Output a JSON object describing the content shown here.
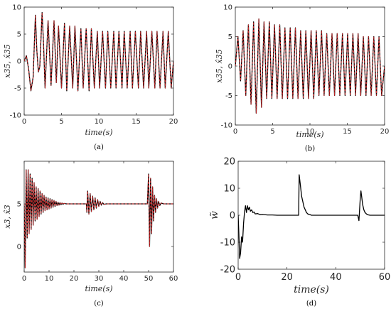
{
  "chart_data": [
    {
      "type": "line",
      "panel_label": "(a)",
      "xlabel": "time(s)",
      "ylabel": "x35, x̂35",
      "xlim": [
        0,
        20
      ],
      "ylim": [
        -10,
        10
      ],
      "xticks": [
        0,
        5,
        10,
        15,
        20
      ],
      "yticks": [
        -10,
        -5,
        0,
        5,
        10
      ],
      "grid": false,
      "series": [
        {
          "role": "actual",
          "color": "#000000",
          "dashed": false,
          "x": [
            0,
            0.3,
            0.6,
            0.9,
            1.2,
            1.5,
            1.7,
            1.9,
            2.1,
            2.4,
            2.6,
            2.8,
            3.2,
            3.6,
            4.0,
            4.3,
            4.6,
            5.0,
            5.4,
            5.7,
            6.1,
            6.5,
            6.8,
            7.2,
            7.6,
            7.9,
            8.3,
            8.7,
            9.0,
            9.4,
            9.8,
            10.1,
            10.5,
            10.9,
            11.2,
            11.6,
            12.0,
            12.3,
            12.7,
            13.1,
            13.4,
            13.8,
            14.2,
            14.5,
            14.9,
            15.3,
            15.6,
            16.0,
            16.4,
            16.7,
            17.1,
            17.5,
            17.8,
            18.2,
            18.6,
            18.9,
            19.3,
            19.7,
            20.0
          ],
          "y": [
            0,
            1,
            -1.5,
            -5.5,
            -3,
            8.5,
            2,
            -2,
            -1,
            9,
            3,
            -5,
            7.5,
            -4.5,
            7.5,
            -4,
            6.5,
            -5,
            7,
            -5.5,
            6.5,
            -5,
            6.5,
            -5.5,
            6,
            -5,
            6,
            -5.5,
            6,
            -5,
            5.5,
            -5,
            5.5,
            -5,
            5.5,
            -5,
            5.5,
            -5,
            5.5,
            -5,
            5.5,
            -5,
            5.5,
            -5,
            5.5,
            -5,
            5.5,
            -5,
            5.5,
            -5,
            5.5,
            -5,
            5.5,
            -5,
            5.5,
            -5,
            5.5,
            -5,
            0
          ]
        },
        {
          "role": "estimate",
          "color": "#d62728",
          "dashed": true,
          "x": [
            0,
            0.3,
            0.6,
            0.9,
            1.2,
            1.5,
            1.7,
            1.9,
            2.1,
            2.4,
            2.6,
            2.8,
            3.2,
            3.6,
            4.0,
            4.3,
            4.6,
            5.0,
            5.4,
            5.7,
            6.1,
            6.5,
            6.8,
            7.2,
            7.6,
            7.9,
            8.3,
            8.7,
            9.0,
            9.4,
            9.8,
            10.1,
            10.5,
            10.9,
            11.2,
            11.6,
            12.0,
            12.3,
            12.7,
            13.1,
            13.4,
            13.8,
            14.2,
            14.5,
            14.9,
            15.3,
            15.6,
            16.0,
            16.4,
            16.7,
            17.1,
            17.5,
            17.8,
            18.2,
            18.6,
            18.9,
            19.3,
            19.7,
            20.0
          ],
          "y": [
            0,
            1,
            -1.5,
            -5.5,
            -3,
            8.5,
            2,
            -2,
            -1,
            9,
            3,
            -5,
            7.5,
            -4.5,
            7.5,
            -4,
            6.5,
            -5,
            7,
            -5.5,
            6.5,
            -5,
            6.5,
            -5.5,
            6,
            -5,
            6,
            -5.5,
            6,
            -5,
            5.5,
            -5,
            5.5,
            -5,
            5.5,
            -5,
            5.5,
            -5,
            5.5,
            -5,
            5.5,
            -5,
            5.5,
            -5,
            5.5,
            -5,
            5.5,
            -5,
            5.5,
            -5,
            5.5,
            -5,
            5.5,
            -5,
            5.5,
            -5,
            5.5,
            -5,
            0
          ]
        }
      ]
    },
    {
      "type": "line",
      "panel_label": "(b)",
      "xlabel": "time(s)",
      "ylabel": "x35, x̂35",
      "xlim": [
        0,
        20
      ],
      "ylim": [
        -10,
        10
      ],
      "xticks": [
        0,
        5,
        10,
        15,
        20
      ],
      "yticks": [
        -10,
        -5,
        0,
        5,
        10
      ],
      "grid": false,
      "series": [
        {
          "role": "actual",
          "color": "#000000",
          "dashed": false,
          "x": [
            0,
            0.35,
            0.7,
            1.05,
            1.4,
            1.75,
            2.1,
            2.45,
            2.8,
            3.15,
            3.5,
            3.85,
            4.2,
            4.55,
            4.9,
            5.25,
            5.6,
            5.95,
            6.3,
            6.65,
            7.0,
            7.35,
            7.7,
            8.05,
            8.4,
            8.75,
            9.1,
            9.45,
            9.8,
            10.15,
            10.5,
            10.85,
            11.2,
            11.55,
            11.9,
            12.25,
            12.6,
            12.95,
            13.3,
            13.65,
            14.0,
            14.35,
            14.7,
            15.05,
            15.4,
            15.75,
            16.1,
            16.45,
            16.8,
            17.15,
            17.5,
            17.85,
            18.2,
            18.55,
            18.9,
            19.25,
            19.6,
            20.0
          ],
          "y": [
            0,
            5,
            -2.5,
            6,
            -5,
            7,
            -6.5,
            7.5,
            -8,
            8,
            -7,
            7.5,
            -5.5,
            7.5,
            -5.5,
            7,
            -5.5,
            7,
            -5.5,
            6.5,
            -5.5,
            6.5,
            -5.5,
            6.5,
            -5.5,
            6,
            -5.5,
            6,
            -5.5,
            6,
            -5.5,
            6,
            -5,
            6,
            -5,
            5.5,
            -5,
            5.5,
            -5,
            5.5,
            -5,
            5.5,
            -5,
            5.5,
            -5,
            5.5,
            -5,
            5.5,
            -5,
            5,
            -5,
            5,
            -5,
            5,
            -5,
            5,
            -5,
            0
          ]
        },
        {
          "role": "estimate",
          "color": "#d62728",
          "dashed": true,
          "x": [
            0,
            0.35,
            0.7,
            1.05,
            1.4,
            1.75,
            2.1,
            2.45,
            2.8,
            3.15,
            3.5,
            3.85,
            4.2,
            4.55,
            4.9,
            5.25,
            5.6,
            5.95,
            6.3,
            6.65,
            7.0,
            7.35,
            7.7,
            8.05,
            8.4,
            8.75,
            9.1,
            9.45,
            9.8,
            10.15,
            10.5,
            10.85,
            11.2,
            11.55,
            11.9,
            12.25,
            12.6,
            12.95,
            13.3,
            13.65,
            14.0,
            14.35,
            14.7,
            15.05,
            15.4,
            15.75,
            16.1,
            16.45,
            16.8,
            17.15,
            17.5,
            17.85,
            18.2,
            18.55,
            18.9,
            19.25,
            19.6,
            20.0
          ],
          "y": [
            0,
            5,
            -2.5,
            6,
            -5,
            7,
            -6.5,
            7.5,
            -8,
            8,
            -7,
            7.5,
            -5.5,
            7.5,
            -5.5,
            7,
            -5.5,
            7,
            -5.5,
            6.5,
            -5.5,
            6.5,
            -5.5,
            6.5,
            -5.5,
            6,
            -5.5,
            6,
            -5.5,
            6,
            -5.5,
            6,
            -5,
            6,
            -5,
            5.5,
            -5,
            5.5,
            -5,
            5.5,
            -5,
            5.5,
            -5,
            5.5,
            -5,
            5.5,
            -5,
            5.5,
            -5,
            5,
            -5,
            5,
            -5,
            5,
            -5,
            5,
            -5,
            0
          ]
        }
      ]
    },
    {
      "type": "line",
      "panel_label": "(c)",
      "xlabel": "time(s)",
      "ylabel": "x3, x̂3",
      "xlim": [
        0,
        60
      ],
      "ylim": [
        -3,
        10
      ],
      "xticks": [
        0,
        10,
        20,
        30,
        40,
        50,
        60
      ],
      "yticks": [
        0,
        5
      ],
      "grid": false,
      "series": [
        {
          "role": "actual",
          "color": "#000000",
          "dashed": false,
          "x": [
            0,
            0.4,
            0.8,
            1.2,
            1.6,
            2.0,
            2.4,
            2.8,
            3.2,
            3.6,
            4.0,
            4.4,
            4.8,
            5.2,
            5.6,
            6.0,
            6.4,
            6.8,
            7.2,
            7.6,
            8.0,
            8.4,
            8.8,
            9.2,
            9.6,
            10.0,
            10.4,
            10.8,
            11.2,
            11.6,
            12.0,
            12.4,
            12.8,
            13.2,
            13.6,
            14.0,
            14.4,
            14.8,
            15.2,
            15.6,
            16.0,
            17,
            18,
            19,
            20,
            21,
            22,
            23,
            24,
            25,
            25.2,
            25.5,
            26.0,
            26.5,
            27.0,
            27.5,
            28.0,
            28.5,
            29.0,
            29.5,
            30.0,
            30.5,
            31.0,
            31.5,
            32.0,
            33,
            34,
            35,
            40,
            45,
            49.5,
            50.0,
            50.4,
            50.8,
            51.2,
            51.6,
            52.0,
            52.4,
            52.8,
            53.2,
            53.6,
            54.0,
            54.5,
            55,
            56,
            58,
            60
          ],
          "y": [
            5,
            -2.5,
            9,
            1,
            9,
            1.5,
            8.5,
            2,
            8,
            2.5,
            7.5,
            3,
            7,
            3.2,
            6.8,
            3.5,
            6.5,
            3.8,
            6.2,
            4,
            6,
            4.2,
            5.8,
            4.3,
            5.7,
            4.4,
            5.6,
            4.5,
            5.5,
            4.6,
            5.4,
            4.7,
            5.3,
            4.8,
            5.2,
            4.85,
            5.15,
            4.9,
            5.1,
            4.95,
            5.05,
            5,
            5,
            5,
            5,
            5,
            5,
            5,
            5,
            5,
            4,
            6.5,
            3.8,
            6.2,
            4.1,
            5.9,
            4.3,
            5.7,
            4.5,
            5.5,
            4.7,
            5.3,
            4.85,
            5.15,
            4.95,
            5,
            5,
            5,
            5,
            5,
            5,
            8.5,
            0,
            8,
            1.5,
            7,
            3,
            6,
            4,
            5.6,
            4.5,
            5.3,
            4.8,
            5.1,
            5,
            5,
            5
          ]
        },
        {
          "role": "estimate",
          "color": "#d62728",
          "dashed": true,
          "x": [
            0,
            0.4,
            0.8,
            1.2,
            1.6,
            2.0,
            2.4,
            2.8,
            3.2,
            3.6,
            4.0,
            4.4,
            4.8,
            5.2,
            5.6,
            6.0,
            6.4,
            6.8,
            7.2,
            7.6,
            8.0,
            8.4,
            8.8,
            9.2,
            9.6,
            10.0,
            10.4,
            10.8,
            11.2,
            11.6,
            12.0,
            12.4,
            12.8,
            13.2,
            13.6,
            14.0,
            14.4,
            14.8,
            15.2,
            15.6,
            16.0,
            17,
            18,
            19,
            20,
            21,
            22,
            23,
            24,
            25,
            25.2,
            25.5,
            26.0,
            26.5,
            27.0,
            27.5,
            28.0,
            28.5,
            29.0,
            29.5,
            30.0,
            30.5,
            31.0,
            31.5,
            32.0,
            33,
            34,
            35,
            40,
            45,
            49.5,
            50.0,
            50.4,
            50.8,
            51.2,
            51.6,
            52.0,
            52.4,
            52.8,
            53.2,
            53.6,
            54.0,
            54.5,
            55,
            56,
            58,
            60
          ],
          "y": [
            5,
            -2.5,
            9,
            1,
            9,
            1.5,
            8.5,
            2,
            8,
            2.5,
            7.5,
            3,
            7,
            3.2,
            6.8,
            3.5,
            6.5,
            3.8,
            6.2,
            4,
            6,
            4.2,
            5.8,
            4.3,
            5.7,
            4.4,
            5.6,
            4.5,
            5.5,
            4.6,
            5.4,
            4.7,
            5.3,
            4.8,
            5.2,
            4.85,
            5.15,
            4.9,
            5.1,
            4.95,
            5.05,
            5,
            5,
            5,
            5,
            5,
            5,
            5,
            5,
            5,
            4,
            6.5,
            3.8,
            6.2,
            4.1,
            5.9,
            4.3,
            5.7,
            4.5,
            5.5,
            4.7,
            5.3,
            4.85,
            5.15,
            4.95,
            5,
            5,
            5,
            5,
            5,
            5,
            8.5,
            0,
            8,
            1.5,
            7,
            3,
            6,
            4,
            5.6,
            4.5,
            5.3,
            4.8,
            5.1,
            5,
            5,
            5
          ]
        }
      ]
    },
    {
      "type": "line",
      "panel_label": "(d)",
      "xlabel": "time(s)",
      "ylabel": "w̃",
      "xlim": [
        0,
        60
      ],
      "ylim": [
        -20,
        20
      ],
      "xticks": [
        0,
        20,
        40,
        60
      ],
      "yticks": [
        -20,
        -10,
        0,
        10,
        20
      ],
      "grid": false,
      "series": [
        {
          "role": "error",
          "color": "#000000",
          "dashed": false,
          "x": [
            0,
            0.3,
            0.6,
            1.0,
            1.4,
            1.8,
            2.2,
            2.6,
            3.0,
            3.4,
            3.8,
            4.2,
            4.6,
            5.0,
            5.5,
            6.0,
            6.5,
            7.0,
            8,
            9,
            10,
            12,
            14,
            16,
            18,
            20,
            22,
            24,
            24.8,
            25.0,
            25.5,
            26.0,
            26.5,
            27.0,
            27.5,
            28.0,
            28.5,
            29.0,
            29.5,
            30,
            32,
            35,
            40,
            45,
            49,
            49.5,
            50.0,
            50.3,
            50.6,
            51.0,
            51.5,
            52.0,
            52.5,
            53.0,
            54,
            56,
            58,
            60
          ],
          "y": [
            0,
            -7,
            -16,
            -14,
            -8,
            -10,
            -3,
            1,
            3.5,
            1,
            3.5,
            2,
            3,
            1.5,
            2,
            1,
            1.2,
            0.5,
            0.6,
            0.2,
            0.3,
            0.1,
            0.1,
            0,
            0,
            0,
            0,
            0,
            0,
            15,
            11,
            7,
            5,
            3,
            2,
            1,
            0.5,
            0.3,
            0.2,
            0,
            0,
            0,
            0,
            0,
            0,
            -2,
            6,
            9,
            7,
            4,
            2,
            1,
            0.5,
            0.2,
            0,
            0,
            0,
            0
          ]
        }
      ]
    }
  ]
}
